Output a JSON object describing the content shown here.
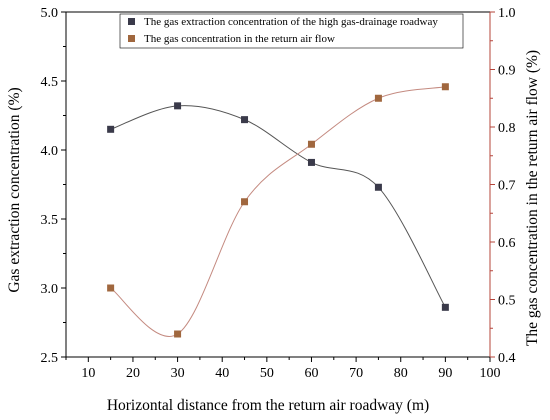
{
  "chart_data": {
    "type": "scatter",
    "xlabel": "Horizontal distance from the return air roadway (m)",
    "ylabel_left": "Gas extraction concentration (%)",
    "ylabel_right": "The gas concentration in the return air flow (%)",
    "xlim": [
      5,
      100
    ],
    "ylim_left": [
      2.5,
      5.0
    ],
    "ylim_right": [
      0.4,
      1.0
    ],
    "x_ticks": [
      10,
      20,
      30,
      40,
      50,
      60,
      70,
      80,
      90,
      100
    ],
    "y_left_ticks": [
      2.5,
      3.0,
      3.5,
      4.0,
      4.5,
      5.0
    ],
    "y_right_ticks": [
      0.4,
      0.5,
      0.6,
      0.7,
      0.8,
      0.9,
      1.0
    ],
    "grid": false,
    "legend_position": "top-right",
    "series": [
      {
        "name": "The gas extraction concentration of the high gas-drainage roadway",
        "axis": "left",
        "color": "#3a3a4a",
        "marker": "square",
        "x": [
          15,
          30,
          45,
          60,
          75,
          90
        ],
        "y": [
          4.15,
          4.32,
          4.22,
          3.91,
          3.73,
          2.86
        ],
        "fit_curve_color": "#555555"
      },
      {
        "name": "The gas concentration in the return air flow",
        "axis": "right",
        "color": "#a0673e",
        "marker": "square",
        "x": [
          15,
          30,
          45,
          60,
          75,
          90
        ],
        "y": [
          0.52,
          0.44,
          0.67,
          0.77,
          0.85,
          0.87
        ],
        "fit_curve_color": "#c48a80"
      }
    ],
    "right_axis_color": "#b5443a"
  }
}
